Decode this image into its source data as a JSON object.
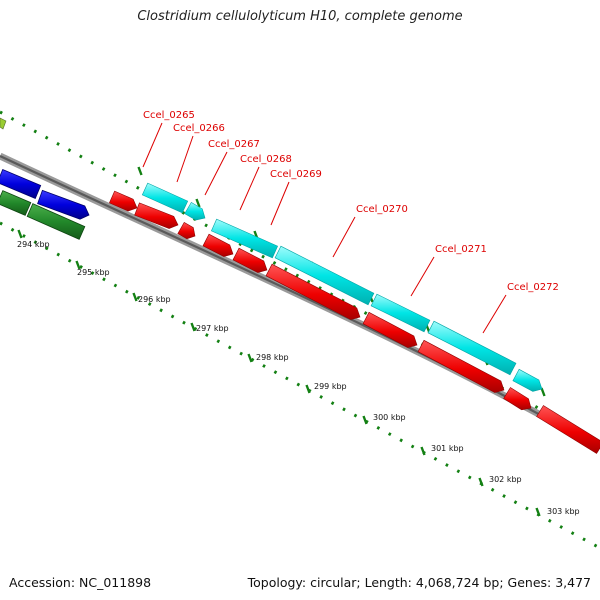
{
  "title": "Clostridium cellulolyticum H10, complete genome",
  "footer": {
    "accession": "Accession: NC_011898",
    "summary": "Topology: circular; Length: 4,068,724 bp; Genes: 3,477"
  },
  "colors": {
    "forward_cds": "#00e5e5",
    "reverse_cds": "#ee0000",
    "blue_feature": "#0000dd",
    "green_feature": "#22882a",
    "tick": "#138013",
    "label": "#dd0000",
    "backbone": "#666666"
  },
  "gene_labels": [
    "Ccel_0265",
    "Ccel_0266",
    "Ccel_0267",
    "Ccel_0268",
    "Ccel_0269",
    "Ccel_0270",
    "Ccel_0271",
    "Ccel_0272"
  ],
  "kbp_labels": [
    "294 kbp",
    "295 kbp",
    "296 kbp",
    "297 kbp",
    "298 kbp",
    "299 kbp",
    "300 kbp",
    "301 kbp",
    "302 kbp",
    "303 kbp"
  ]
}
